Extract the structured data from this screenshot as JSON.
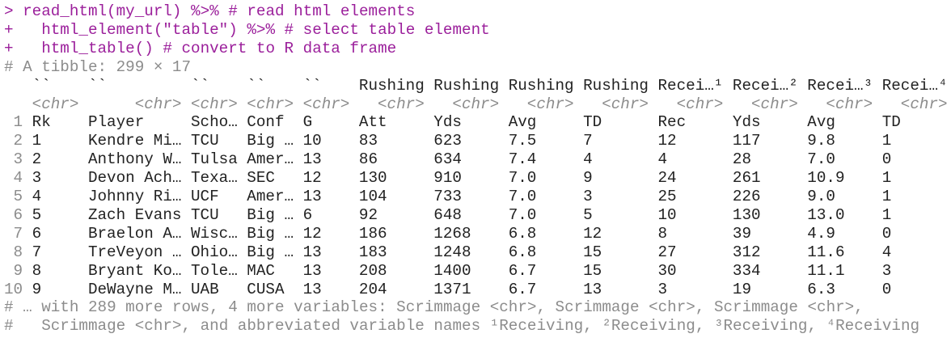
{
  "console": {
    "input_lines": [
      {
        "prompt": ">",
        "code": "read_html(my_url) %>% # read html elements"
      },
      {
        "prompt": "+",
        "code": "  html_element(\"table\") %>% # select table element"
      },
      {
        "prompt": "+",
        "code": "  html_table() # convert to R data frame"
      }
    ],
    "tibble_line": "# A tibble: 299 × 17",
    "header_top": [
      "``",
      "``",
      "``",
      "``",
      "``",
      "Rushing",
      "Rushing",
      "Rushing",
      "Rushing",
      "Recei…¹",
      "Recei…²",
      "Recei…³",
      "Recei…⁴"
    ],
    "types": [
      "<chr>",
      "<chr>",
      "<chr>",
      "<chr>",
      "<chr>",
      "<chr>",
      "<chr>",
      "<chr>",
      "<chr>",
      "<chr>",
      "<chr>",
      "<chr>",
      "<chr>"
    ],
    "row_numbers": [
      "1",
      "2",
      "3",
      "4",
      "5",
      "6",
      "7",
      "8",
      "9",
      "10"
    ],
    "rows": [
      [
        "Rk",
        "Player",
        "Scho…",
        "Conf",
        "G",
        "Att",
        "Yds",
        "Avg",
        "TD",
        "Rec",
        "Yds",
        "Avg",
        "TD"
      ],
      [
        "1",
        "Kendre Mi…",
        "TCU",
        "Big …",
        "10",
        "83",
        "623",
        "7.5",
        "7",
        "12",
        "117",
        "9.8",
        "1"
      ],
      [
        "2",
        "Anthony W…",
        "Tulsa",
        "Amer…",
        "13",
        "86",
        "634",
        "7.4",
        "4",
        "4",
        "28",
        "7.0",
        "0"
      ],
      [
        "3",
        "Devon Ach…",
        "Texa…",
        "SEC",
        "12",
        "130",
        "910",
        "7.0",
        "9",
        "24",
        "261",
        "10.9",
        "1"
      ],
      [
        "4",
        "Johnny Ri…",
        "UCF",
        "Amer…",
        "13",
        "104",
        "733",
        "7.0",
        "3",
        "25",
        "226",
        "9.0",
        "1"
      ],
      [
        "5",
        "Zach Evans",
        "TCU",
        "Big …",
        "6",
        "92",
        "648",
        "7.0",
        "5",
        "10",
        "130",
        "13.0",
        "1"
      ],
      [
        "6",
        "Braelon A…",
        "Wisc…",
        "Big …",
        "12",
        "186",
        "1268",
        "6.8",
        "12",
        "8",
        "39",
        "4.9",
        "0"
      ],
      [
        "7",
        "TreVeyon …",
        "Ohio…",
        "Big …",
        "13",
        "183",
        "1248",
        "6.8",
        "15",
        "27",
        "312",
        "11.6",
        "4"
      ],
      [
        "8",
        "Bryant Ko…",
        "Tole…",
        "MAC",
        "13",
        "208",
        "1400",
        "6.7",
        "15",
        "30",
        "334",
        "11.1",
        "3"
      ],
      [
        "9",
        "DeWayne M…",
        "UAB",
        "CUSA",
        "13",
        "204",
        "1371",
        "6.7",
        "13",
        "3",
        "19",
        "6.3",
        "0"
      ]
    ],
    "footer_lines": [
      "# … with 289 more rows, 4 more variables: Scrimmage <chr>, Scrimmage <chr>, Scrimmage <chr>,",
      "#   Scrimmage <chr>, and abbreviated variable names ¹Receiving, ²Receiving, ³Receiving, ⁴Receiving"
    ]
  }
}
